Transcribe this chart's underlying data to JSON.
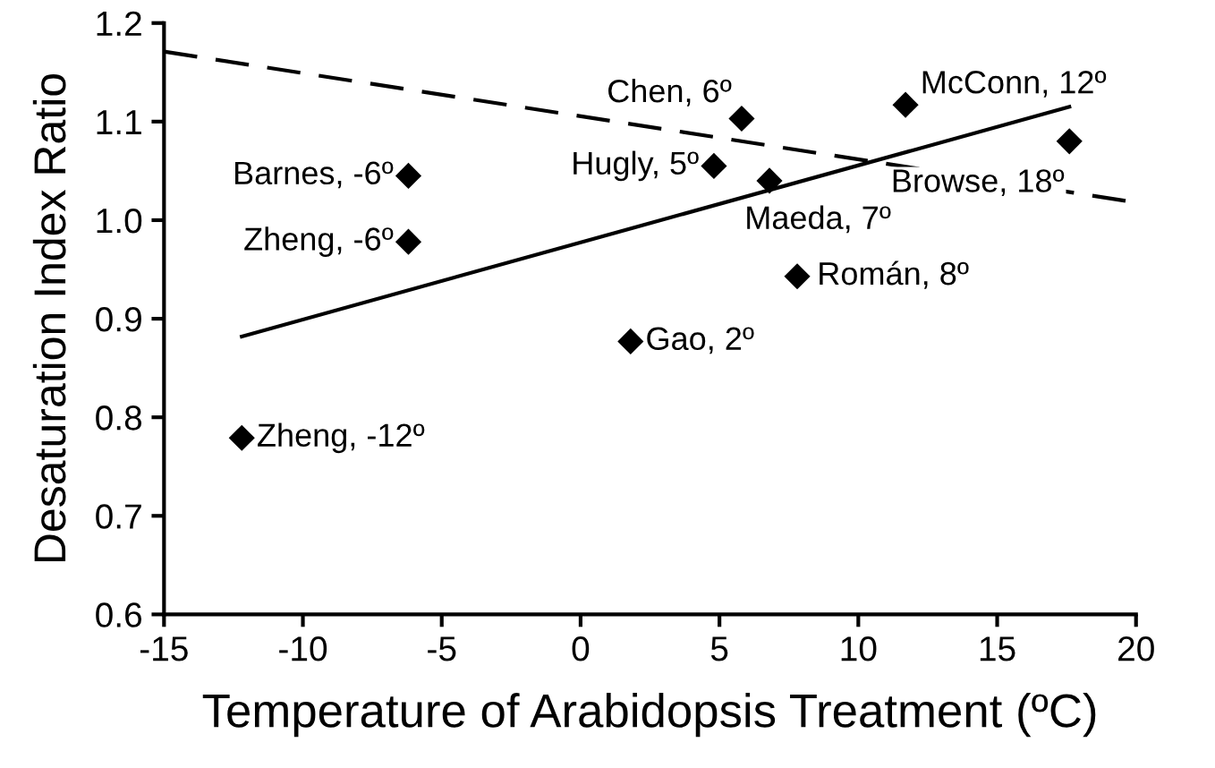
{
  "chart_data": {
    "type": "scatter",
    "xlabel": "Temperature of Arabidopsis Treatment (ºC)",
    "ylabel": "Desaturation Index Ratio",
    "xlim": [
      -15,
      20
    ],
    "xticks": [
      -15,
      -10,
      -5,
      0,
      5,
      10,
      15,
      20
    ],
    "ylim": [
      0.6,
      1.2
    ],
    "yticks": [
      {
        "value": 0.6,
        "label": "0.6"
      },
      {
        "value": 0.7,
        "label": "0.7"
      },
      {
        "value": 0.8,
        "label": "0.8"
      },
      {
        "value": 0.9,
        "label": "0.9"
      },
      {
        "value": 1.0,
        "label": "1.0"
      },
      {
        "value": 1.1,
        "label": "1.1"
      },
      {
        "value": 1.2,
        "label": "1.2"
      }
    ],
    "grid": false,
    "legend": false,
    "series": [
      {
        "color": "#000000",
        "marker": "diamond",
        "x": [
          -6.2,
          -6.2,
          -12.2,
          1.8,
          4.8,
          5.8,
          6.8,
          7.8,
          11.7,
          17.6
        ],
        "values": [
          1.045,
          0.978,
          0.779,
          0.877,
          1.055,
          1.103,
          1.04,
          0.943,
          1.117,
          1.08
        ]
      },
      {
        "type": "line",
        "color": "#000000",
        "line_style": "solid",
        "marker": "none",
        "x": [
          -12.2,
          17.6
        ],
        "values": [
          0.882,
          1.115
        ]
      },
      {
        "type": "line",
        "color": "#000000",
        "line_style": "dashed",
        "marker": "none",
        "x": [
          -15,
          20
        ],
        "values": [
          1.171,
          1.018
        ]
      }
    ],
    "annotations": [
      {
        "text": "Barnes, -6º",
        "x": -6.2,
        "y": 1.045
      },
      {
        "text": "Zheng, -6º",
        "x": -6.2,
        "y": 0.978
      },
      {
        "text": "Zheng, -12º",
        "x": -12.2,
        "y": 0.779
      },
      {
        "text": "Gao, 2º",
        "x": 1.8,
        "y": 0.877
      },
      {
        "text": "Hugly, 5º",
        "x": 4.8,
        "y": 1.055
      },
      {
        "text": "Chen, 6º",
        "x": 5.8,
        "y": 1.103
      },
      {
        "text": "Maeda, 7º",
        "x": 6.8,
        "y": 1.04
      },
      {
        "text": "Román, 8º",
        "x": 7.8,
        "y": 0.943
      },
      {
        "text": "McConn, 12º",
        "x": 11.7,
        "y": 1.117
      },
      {
        "text": "Browse, 18º",
        "x": 17.6,
        "y": 1.08
      }
    ]
  }
}
